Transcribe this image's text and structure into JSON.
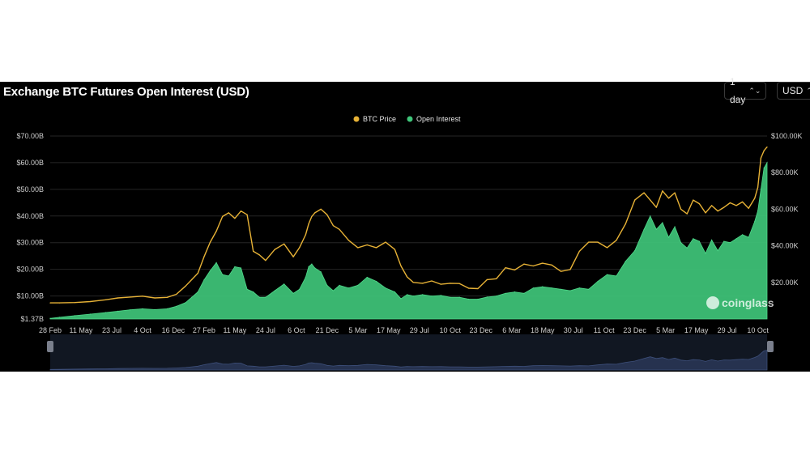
{
  "header": {
    "title": "Exchange BTC Futures Open Interest (USD)",
    "interval_label": "1 day",
    "currency_label": "USD"
  },
  "watermark": {
    "text": "coinglass",
    "icon": "coinglass-logo-icon"
  },
  "colors": {
    "background": "#000000",
    "price_line": "#e7b236",
    "open_interest_fill": "#3fc67a",
    "open_interest_top": "#4fd98a",
    "navigator_fill": "#26324f",
    "grid": "#262626",
    "axis_text": "#cfcfcf"
  },
  "chart_data": {
    "type": "area",
    "title": "Exchange BTC Futures Open Interest (USD)",
    "legend": {
      "placement": "top-center",
      "entries": [
        "BTC Price",
        "Open Interest"
      ]
    },
    "grid": true,
    "x_ticks": [
      "28 Feb",
      "11 May",
      "23 Jul",
      "4 Oct",
      "16 Dec",
      "27 Feb",
      "11 May",
      "24 Jul",
      "6 Oct",
      "21 Dec",
      "5 Mar",
      "17 May",
      "29 Jul",
      "10 Oct",
      "23 Dec",
      "6 Mar",
      "18 May",
      "30 Jul",
      "11 Oct",
      "23 Dec",
      "5 Mar",
      "17 May",
      "29 Jul",
      "10 Oct"
    ],
    "y_left": {
      "label": "",
      "ticks": [
        "$1.37B",
        "$10.00B",
        "$20.00B",
        "$30.00B",
        "$40.00B",
        "$50.00B",
        "$60.00B",
        "$70.00B"
      ],
      "tick_values": [
        1.37,
        10,
        20,
        30,
        40,
        50,
        60,
        70
      ],
      "range": [
        1.37,
        70
      ]
    },
    "y_right": {
      "label": "",
      "ticks": [
        "$20.00K",
        "$40.00K",
        "$60.00K",
        "$80.00K",
        "$100.00K"
      ],
      "tick_values": [
        20,
        40,
        60,
        80,
        100
      ],
      "range": [
        0,
        100
      ]
    },
    "x_index_range": [
      0,
      23.3
    ],
    "series": [
      {
        "name": "BTC Price",
        "axis": "right",
        "unit": "K USD",
        "x": [
          0,
          0.3,
          0.8,
          1.3,
          1.8,
          2.2,
          2.6,
          3.0,
          3.4,
          3.8,
          4.1,
          4.4,
          4.6,
          4.8,
          5.0,
          5.2,
          5.4,
          5.6,
          5.8,
          6.0,
          6.2,
          6.4,
          6.6,
          6.8,
          7.0,
          7.3,
          7.6,
          7.9,
          8.1,
          8.3,
          8.4,
          8.5,
          8.6,
          8.8,
          9.0,
          9.2,
          9.4,
          9.7,
          10.0,
          10.3,
          10.6,
          10.9,
          11.2,
          11.4,
          11.6,
          11.8,
          12.1,
          12.4,
          12.7,
          13.0,
          13.3,
          13.6,
          13.9,
          14.2,
          14.5,
          14.8,
          15.1,
          15.4,
          15.7,
          16.0,
          16.3,
          16.6,
          16.9,
          17.2,
          17.5,
          17.8,
          18.1,
          18.4,
          18.7,
          19.0,
          19.3,
          19.5,
          19.7,
          19.9,
          20.1,
          20.3,
          20.5,
          20.7,
          20.9,
          21.1,
          21.3,
          21.5,
          21.7,
          21.9,
          22.1,
          22.3,
          22.5,
          22.7,
          22.9,
          23.0,
          23.1,
          23.2,
          23.3
        ],
        "y": [
          8.8,
          8.8,
          9.0,
          9.5,
          10.5,
          11.5,
          12.0,
          12.5,
          11.5,
          11.8,
          13.5,
          18.0,
          21.5,
          25.0,
          34.0,
          42.0,
          48.0,
          56.0,
          58.0,
          55.0,
          59.0,
          57.0,
          37.0,
          35.0,
          32.0,
          38.0,
          41.0,
          34.0,
          39.0,
          46.0,
          52.0,
          56.0,
          58.0,
          60.0,
          57.0,
          51.0,
          49.0,
          43.0,
          39.0,
          40.5,
          39.0,
          42.0,
          38.0,
          29.0,
          23.0,
          20.0,
          19.5,
          20.8,
          19.0,
          19.5,
          19.4,
          16.8,
          16.6,
          21.5,
          22.0,
          28.0,
          26.8,
          30.0,
          29.0,
          30.5,
          29.5,
          26.0,
          27.0,
          37.0,
          42.0,
          42.0,
          39.0,
          43.0,
          52.0,
          65.0,
          69.0,
          65.0,
          61.0,
          70.0,
          66.0,
          69.0,
          60.0,
          57.5,
          65.0,
          63.0,
          58.0,
          62.0,
          59.0,
          61.0,
          63.5,
          62.0,
          64.0,
          60.5,
          66.0,
          72.0,
          88.0,
          92.0,
          94.0
        ]
      },
      {
        "name": "Open Interest",
        "axis": "left",
        "unit": "B USD",
        "x": [
          0,
          0.3,
          0.8,
          1.3,
          1.8,
          2.2,
          2.6,
          3.0,
          3.4,
          3.8,
          4.1,
          4.4,
          4.6,
          4.8,
          5.0,
          5.2,
          5.4,
          5.6,
          5.8,
          6.0,
          6.2,
          6.4,
          6.6,
          6.8,
          7.0,
          7.3,
          7.6,
          7.9,
          8.1,
          8.3,
          8.4,
          8.5,
          8.6,
          8.8,
          9.0,
          9.2,
          9.4,
          9.7,
          10.0,
          10.3,
          10.6,
          10.9,
          11.2,
          11.4,
          11.6,
          11.8,
          12.1,
          12.4,
          12.7,
          13.0,
          13.3,
          13.6,
          13.9,
          14.2,
          14.5,
          14.8,
          15.1,
          15.4,
          15.7,
          16.0,
          16.3,
          16.6,
          16.9,
          17.2,
          17.5,
          17.8,
          18.1,
          18.4,
          18.7,
          19.0,
          19.3,
          19.5,
          19.7,
          19.9,
          20.1,
          20.3,
          20.5,
          20.7,
          20.9,
          21.1,
          21.3,
          21.5,
          21.7,
          21.9,
          22.1,
          22.3,
          22.5,
          22.7,
          22.9,
          23.0,
          23.1,
          23.2,
          23.3
        ],
        "y": [
          1.6,
          2.0,
          2.6,
          3.2,
          3.8,
          4.3,
          4.8,
          5.2,
          4.9,
          5.2,
          6.1,
          7.5,
          9.5,
          11.5,
          16.0,
          19.5,
          22.5,
          18.0,
          17.5,
          21.0,
          20.5,
          12.5,
          11.5,
          9.5,
          9.5,
          12.0,
          14.5,
          11.0,
          12.5,
          17.0,
          21.0,
          22.0,
          20.5,
          19.0,
          14.0,
          12.0,
          14.0,
          13.0,
          14.0,
          17.0,
          15.5,
          13.0,
          11.5,
          9.0,
          10.5,
          10.0,
          10.5,
          10.0,
          10.2,
          9.5,
          9.5,
          8.8,
          8.8,
          9.6,
          10.0,
          11.0,
          11.5,
          11.0,
          13.0,
          13.5,
          13.0,
          12.5,
          12.0,
          13.0,
          12.5,
          15.5,
          18.0,
          17.5,
          23.0,
          27.0,
          35.0,
          40.0,
          35.0,
          37.5,
          32.0,
          36.0,
          30.0,
          28.0,
          31.5,
          30.5,
          26.0,
          31.0,
          27.0,
          30.5,
          30.0,
          31.5,
          33.0,
          32.0,
          38.0,
          42.0,
          50.0,
          58.0,
          60.0
        ]
      }
    ]
  }
}
